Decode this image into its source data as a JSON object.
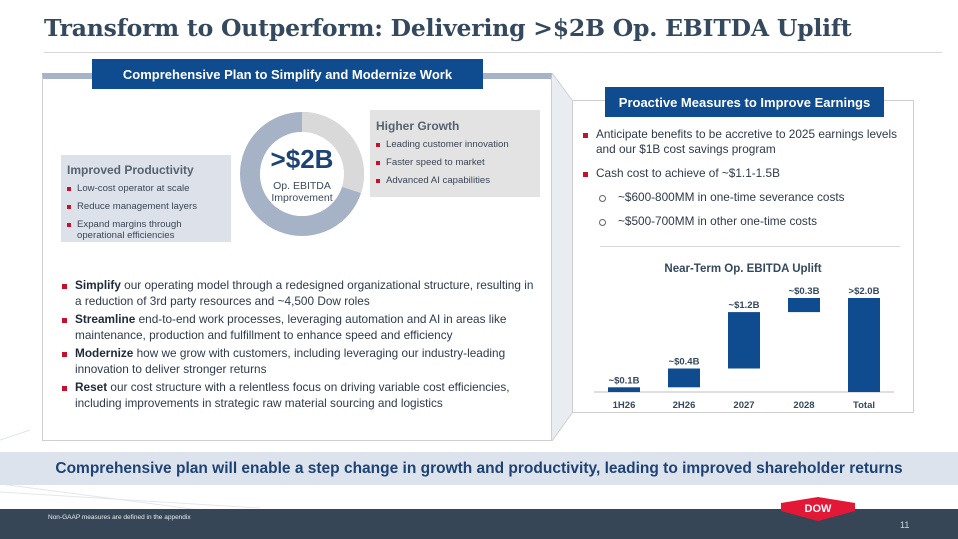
{
  "title": "Transform to Outperform: Delivering >$2B Op. EBITDA Uplift",
  "left_panel": {
    "header": "Comprehensive Plan to Simplify and Modernize Work",
    "donut": {
      "big": ">$2B",
      "small_line1": "Op. EBITDA",
      "small_line2": "Improvement"
    },
    "growth": {
      "title": "Higher Growth",
      "items": [
        "Leading customer innovation",
        "Faster speed to market",
        "Advanced AI capabilities"
      ]
    },
    "productivity": {
      "title": "Improved Productivity",
      "items": [
        "Low-cost operator at scale",
        "Reduce management layers",
        "Expand margins through operational efficiencies"
      ]
    },
    "bullets": [
      {
        "bold": "Simplify",
        "text": " our operating model through a redesigned organizational structure, resulting in a reduction of 3rd party resources and ~4,500 Dow roles"
      },
      {
        "bold": "Streamline",
        "text": " end-to-end work processes, leveraging automation and AI in areas like maintenance, production and fulfillment to enhance speed and efficiency"
      },
      {
        "bold": "Modernize",
        "text": " how we grow with customers, including leveraging our industry-leading innovation to deliver stronger returns"
      },
      {
        "bold": "Reset",
        "text": " our cost structure with a relentless focus on driving variable cost efficiencies, including improvements in strategic raw material sourcing and logistics"
      }
    ]
  },
  "right_panel": {
    "header": "Proactive Measures to Improve Earnings",
    "bullets": [
      "Anticipate benefits to be accretive to 2025 earnings levels and our $1B cost savings program",
      "Cash cost to achieve of ~$1.1-1.5B"
    ],
    "sub_bullets": [
      "~$600-800MM in one-time severance costs",
      "~$500-700MM in other one-time costs"
    ],
    "chart_title": "Near-Term Op. EBITDA Uplift"
  },
  "chart_data": {
    "type": "bar",
    "subtype": "waterfall",
    "title": "Near-Term Op. EBITDA Uplift",
    "categories": [
      "1H26",
      "2H26",
      "2027",
      "2028",
      "Total"
    ],
    "values": [
      0.1,
      0.4,
      1.2,
      0.3,
      2.0
    ],
    "labels": [
      "~$0.1B",
      "~$0.4B",
      "~$1.2B",
      "~$0.3B",
      ">$2.0B"
    ],
    "units": "$B",
    "color": "#0e4b8f",
    "ylim": [
      0,
      2.0
    ]
  },
  "banner": "Comprehensive plan will enable a step change in growth and productivity, leading to improved shareholder returns",
  "footer": {
    "note": "Non-GAAP measures are defined in the appendix",
    "page": "11",
    "logo_text": "DOW"
  },
  "colors": {
    "accent_blue": "#0e4b8f",
    "bullet_red": "#c8102e",
    "footer": "#374656"
  }
}
